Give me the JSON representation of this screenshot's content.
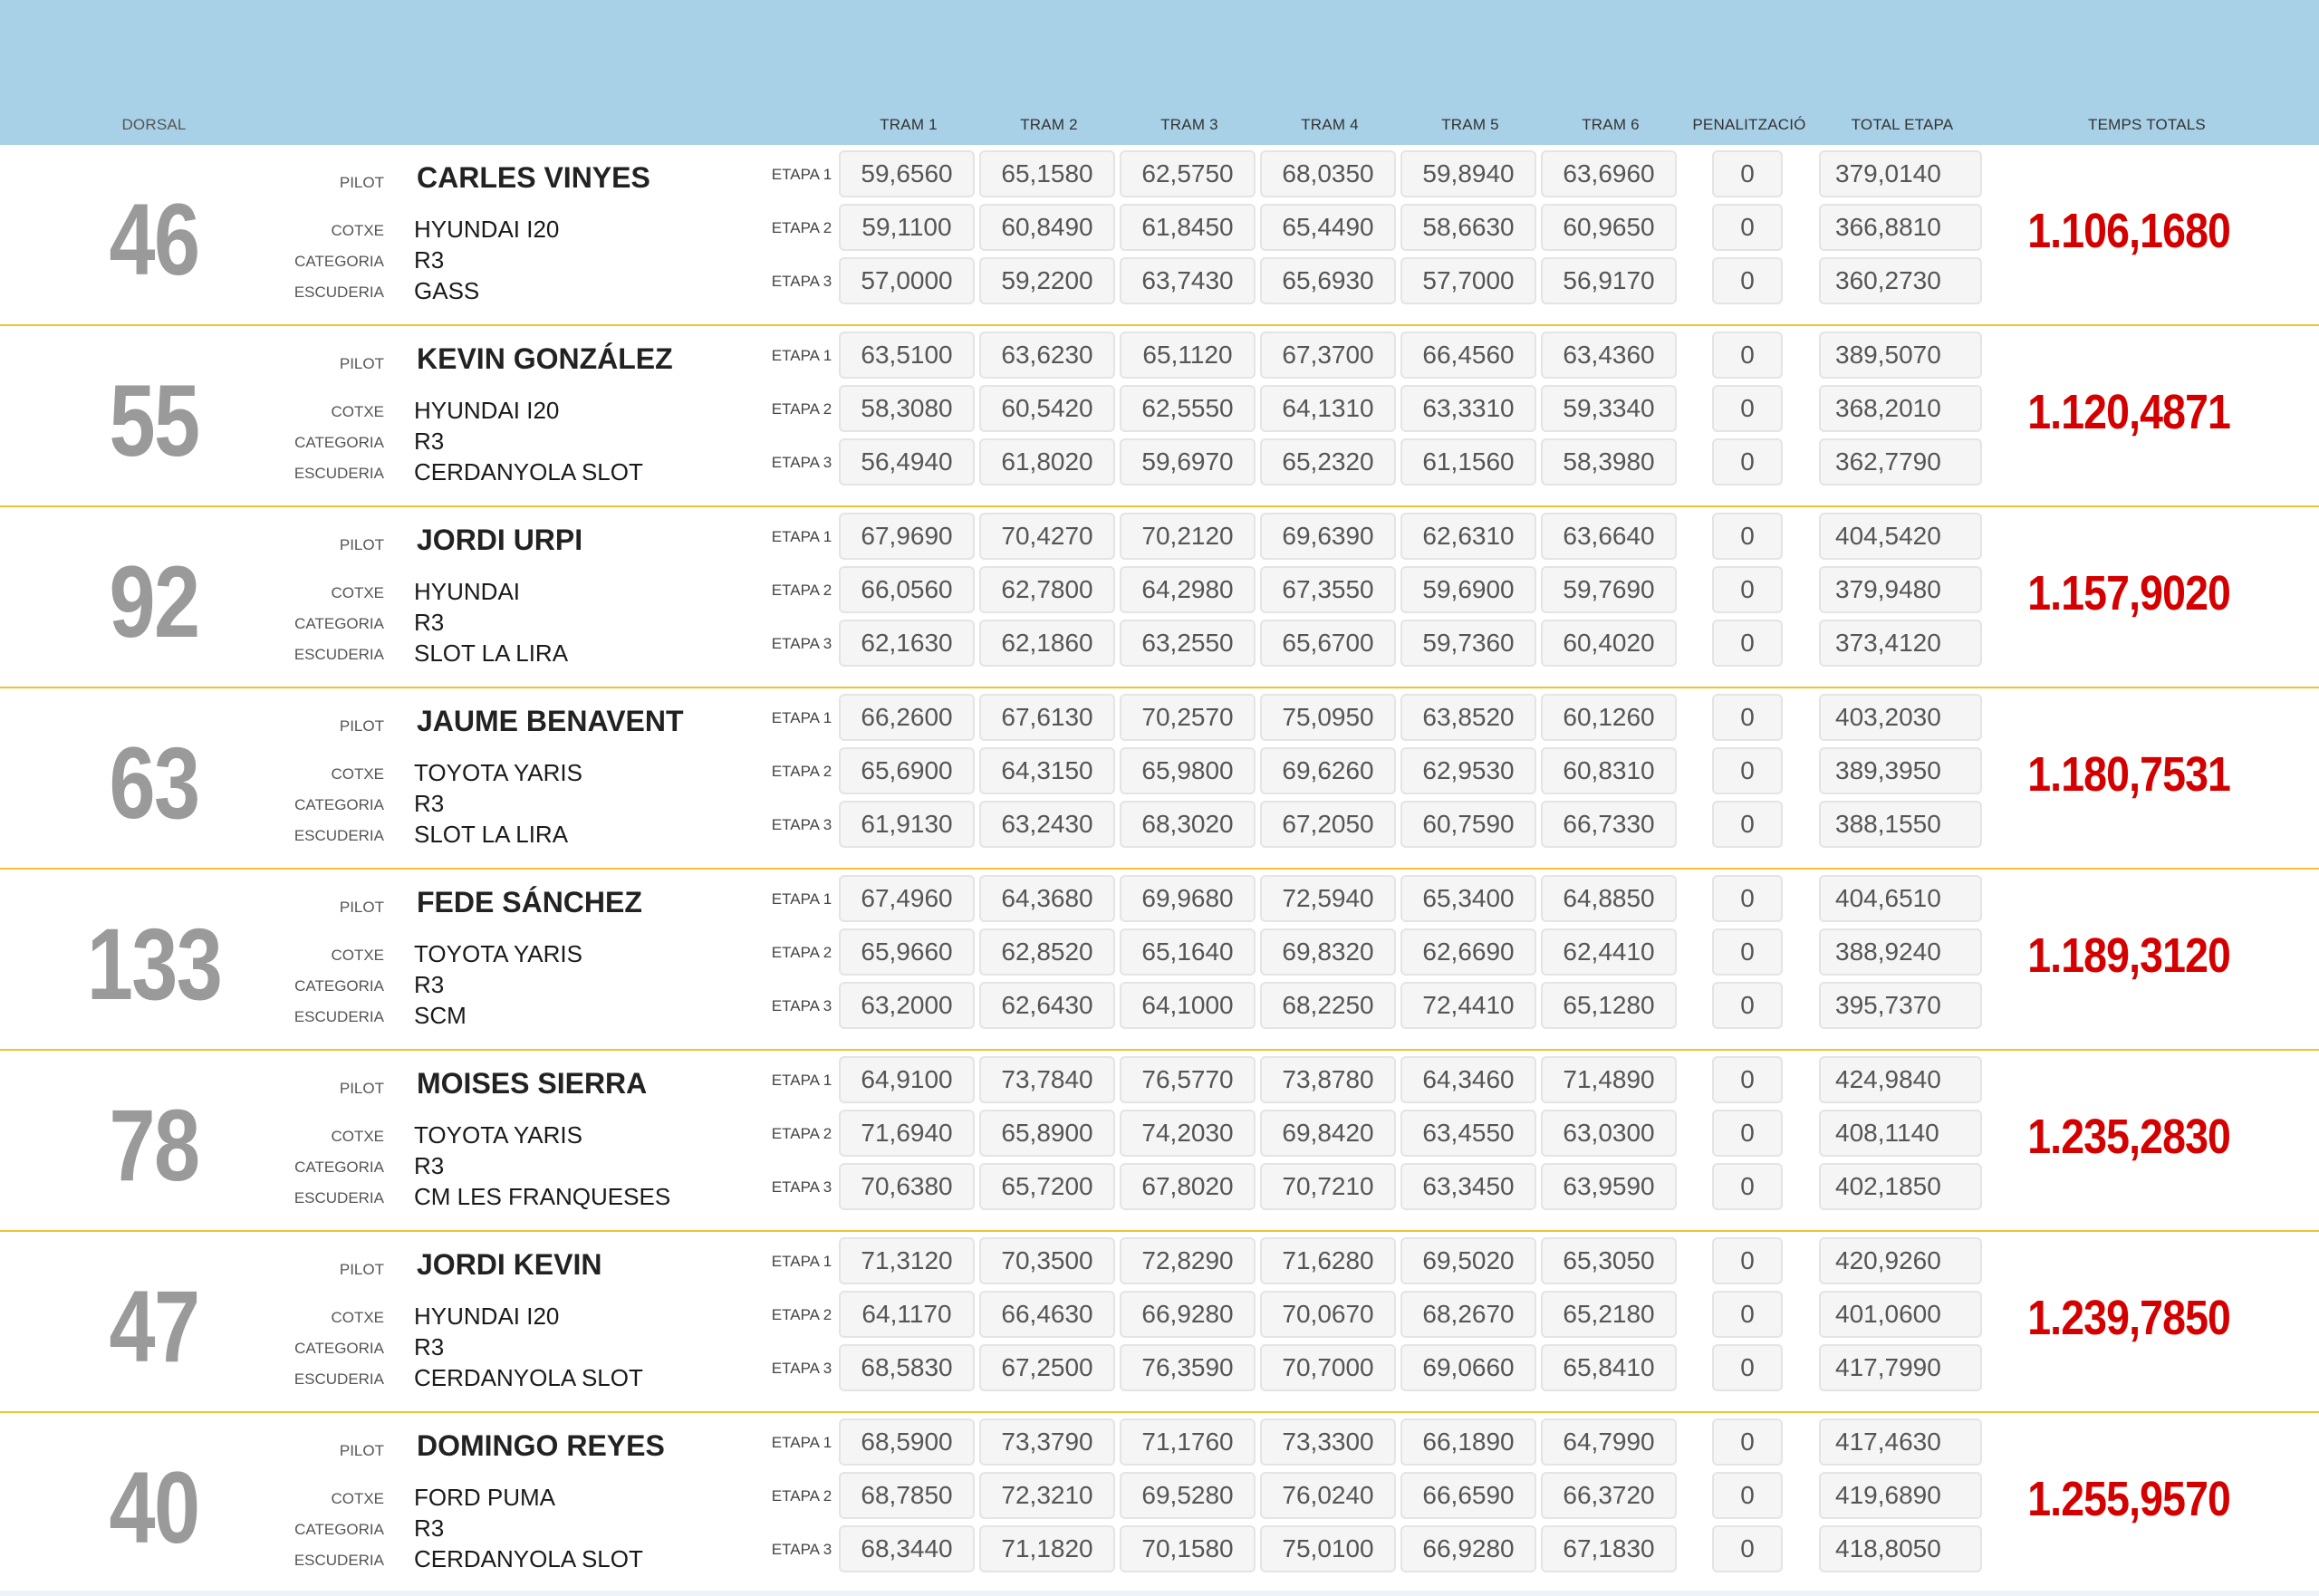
{
  "header": {
    "dorsal": "DORSAL",
    "columns": [
      "TRAM 1",
      "TRAM 2",
      "TRAM 3",
      "TRAM 4",
      "TRAM 5",
      "TRAM 6",
      "PENALITZACIÓ",
      "TOTAL ETAPA"
    ],
    "totals": "TEMPS TOTALS"
  },
  "labels": {
    "pilot": "PILOT",
    "cotxe": "COTXE",
    "categoria": "CATEGORIA",
    "escuderia": "ESCUDERIA",
    "etapes": [
      "ETAPA 1",
      "ETAPA 2",
      "ETAPA 3"
    ]
  },
  "colors": {
    "header_bg": "#a8d0e6",
    "separator": "#f2c230",
    "total_red": "#d40000",
    "dorsal_grey": "#9a9a9a"
  },
  "entries": [
    {
      "dorsal": "46",
      "pilot": "CARLES VINYES",
      "cotxe": "HYUNDAI I20",
      "categoria": "R3",
      "escuderia": "GASS",
      "stages": [
        [
          "59,6560",
          "65,1580",
          "62,5750",
          "68,0350",
          "59,8940",
          "63,6960",
          "0",
          "379,0140"
        ],
        [
          "59,1100",
          "60,8490",
          "61,8450",
          "65,4490",
          "58,6630",
          "60,9650",
          "0",
          "366,8810"
        ],
        [
          "57,0000",
          "59,2200",
          "63,7430",
          "65,6930",
          "57,7000",
          "56,9170",
          "0",
          "360,2730"
        ]
      ],
      "total": "1.106,1680"
    },
    {
      "dorsal": "55",
      "pilot": "KEVIN GONZÁLEZ",
      "cotxe": "HYUNDAI I20",
      "categoria": "R3",
      "escuderia": "CERDANYOLA SLOT",
      "stages": [
        [
          "63,5100",
          "63,6230",
          "65,1120",
          "67,3700",
          "66,4560",
          "63,4360",
          "0",
          "389,5070"
        ],
        [
          "58,3080",
          "60,5420",
          "62,5550",
          "64,1310",
          "63,3310",
          "59,3340",
          "0",
          "368,2010"
        ],
        [
          "56,4940",
          "61,8020",
          "59,6970",
          "65,2320",
          "61,1560",
          "58,3980",
          "0",
          "362,7790"
        ]
      ],
      "total": "1.120,4871"
    },
    {
      "dorsal": "92",
      "pilot": "JORDI URPI",
      "cotxe": "HYUNDAI",
      "categoria": "R3",
      "escuderia": "SLOT LA LIRA",
      "stages": [
        [
          "67,9690",
          "70,4270",
          "70,2120",
          "69,6390",
          "62,6310",
          "63,6640",
          "0",
          "404,5420"
        ],
        [
          "66,0560",
          "62,7800",
          "64,2980",
          "67,3550",
          "59,6900",
          "59,7690",
          "0",
          "379,9480"
        ],
        [
          "62,1630",
          "62,1860",
          "63,2550",
          "65,6700",
          "59,7360",
          "60,4020",
          "0",
          "373,4120"
        ]
      ],
      "total": "1.157,9020"
    },
    {
      "dorsal": "63",
      "pilot": "JAUME BENAVENT",
      "cotxe": "TOYOTA YARIS",
      "categoria": "R3",
      "escuderia": "SLOT LA LIRA",
      "stages": [
        [
          "66,2600",
          "67,6130",
          "70,2570",
          "75,0950",
          "63,8520",
          "60,1260",
          "0",
          "403,2030"
        ],
        [
          "65,6900",
          "64,3150",
          "65,9800",
          "69,6260",
          "62,9530",
          "60,8310",
          "0",
          "389,3950"
        ],
        [
          "61,9130",
          "63,2430",
          "68,3020",
          "67,2050",
          "60,7590",
          "66,7330",
          "0",
          "388,1550"
        ]
      ],
      "total": "1.180,7531"
    },
    {
      "dorsal": "133",
      "pilot": "FEDE SÁNCHEZ",
      "cotxe": "TOYOTA YARIS",
      "categoria": "R3",
      "escuderia": "SCM",
      "stages": [
        [
          "67,4960",
          "64,3680",
          "69,9680",
          "72,5940",
          "65,3400",
          "64,8850",
          "0",
          "404,6510"
        ],
        [
          "65,9660",
          "62,8520",
          "65,1640",
          "69,8320",
          "62,6690",
          "62,4410",
          "0",
          "388,9240"
        ],
        [
          "63,2000",
          "62,6430",
          "64,1000",
          "68,2250",
          "72,4410",
          "65,1280",
          "0",
          "395,7370"
        ]
      ],
      "total": "1.189,3120"
    },
    {
      "dorsal": "78",
      "pilot": "MOISES SIERRA",
      "cotxe": "TOYOTA YARIS",
      "categoria": "R3",
      "escuderia": "CM LES FRANQUESES",
      "stages": [
        [
          "64,9100",
          "73,7840",
          "76,5770",
          "73,8780",
          "64,3460",
          "71,4890",
          "0",
          "424,9840"
        ],
        [
          "71,6940",
          "65,8900",
          "74,2030",
          "69,8420",
          "63,4550",
          "63,0300",
          "0",
          "408,1140"
        ],
        [
          "70,6380",
          "65,7200",
          "67,8020",
          "70,7210",
          "63,3450",
          "63,9590",
          "0",
          "402,1850"
        ]
      ],
      "total": "1.235,2830"
    },
    {
      "dorsal": "47",
      "pilot": "JORDI KEVIN",
      "cotxe": "HYUNDAI I20",
      "categoria": "R3",
      "escuderia": "CERDANYOLA SLOT",
      "stages": [
        [
          "71,3120",
          "70,3500",
          "72,8290",
          "71,6280",
          "69,5020",
          "65,3050",
          "0",
          "420,9260"
        ],
        [
          "64,1170",
          "66,4630",
          "66,9280",
          "70,0670",
          "68,2670",
          "65,2180",
          "0",
          "401,0600"
        ],
        [
          "68,5830",
          "67,2500",
          "76,3590",
          "70,7000",
          "69,0660",
          "65,8410",
          "0",
          "417,7990"
        ]
      ],
      "total": "1.239,7850"
    },
    {
      "dorsal": "40",
      "pilot": "DOMINGO REYES",
      "cotxe": "FORD PUMA",
      "categoria": "R3",
      "escuderia": "CERDANYOLA SLOT",
      "stages": [
        [
          "68,5900",
          "73,3790",
          "71,1760",
          "73,3300",
          "66,1890",
          "64,7990",
          "0",
          "417,4630"
        ],
        [
          "68,7850",
          "72,3210",
          "69,5280",
          "76,0240",
          "66,6590",
          "66,3720",
          "0",
          "419,6890"
        ],
        [
          "68,3440",
          "71,1820",
          "70,1580",
          "75,0100",
          "66,9280",
          "67,1830",
          "0",
          "418,8050"
        ]
      ],
      "total": "1.255,9570"
    }
  ]
}
